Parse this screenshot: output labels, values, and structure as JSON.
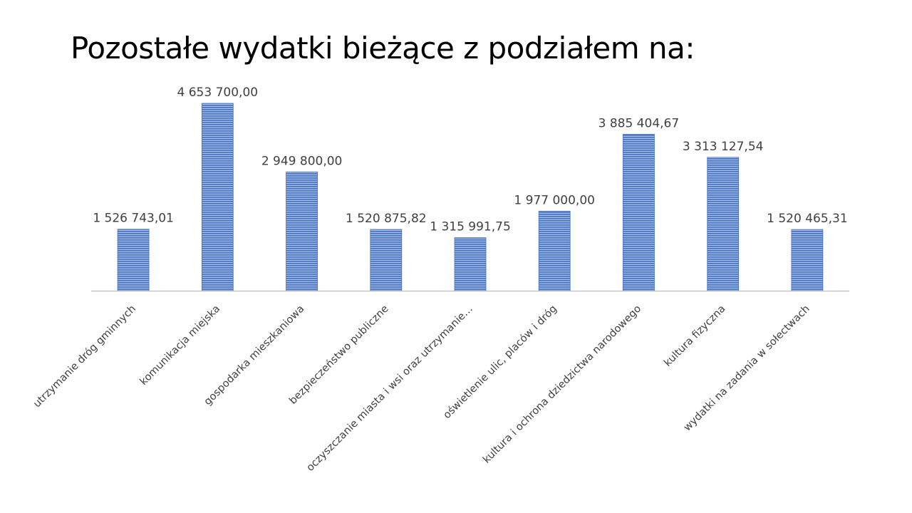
{
  "title": "Pozostałe wydatki bieżące z podziałem na:",
  "colors": {
    "bar_fill": "#4472C4",
    "bar_stripe": "#FFFFFF",
    "axis": "#BFBFBF",
    "label_text": "#404040"
  },
  "chart_data": {
    "type": "bar",
    "title": "Pozostałe wydatki bieżące z podziałem na:",
    "xlabel": "",
    "ylabel": "",
    "grid": false,
    "legend": "none",
    "categories": [
      "utrzymanie dróg  gminnych",
      "komunikacja miejska",
      "gospodarka mieszkaniowa",
      "bezpieczeństwo publiczne",
      "oczyszczanie miasta i wsi oraz utrzymanie…",
      "oświetlenie ulic, placów i dróg",
      "kultura i ochrona dziedzictwa narodowego",
      "kultura fizyczna",
      "wydatki na zadania w sołectwach"
    ],
    "values": [
      1526743.01,
      4653700.0,
      2949800.0,
      1520875.82,
      1315991.75,
      1977000.0,
      3885404.67,
      3313127.54,
      1520465.31
    ],
    "value_labels": [
      "1 526 743,01",
      "4 653 700,00",
      "2 949 800,00",
      "1 520 875,82",
      "1 315 991,75",
      "1 977 000,00",
      "3 885 404,67",
      "3 313 127,54",
      "1 520 465,31"
    ],
    "ylim": [
      0,
      4653700
    ]
  }
}
